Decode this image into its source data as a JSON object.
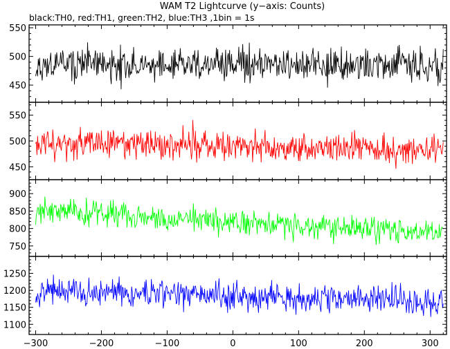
{
  "title": "WAM T2 Lightcurve (y−axis: Counts)",
  "subtitle": "black:TH0, red:TH1, green:TH2, blue:TH3 ,1bin = 1s",
  "chart_data": [
    {
      "type": "line",
      "series": [
        {
          "name": "TH0",
          "color": "#000000",
          "mean": 485,
          "noise": 22,
          "trend": 0,
          "seed": 11
        }
      ],
      "xlim": [
        -310,
        325
      ],
      "ylim": [
        420,
        555
      ],
      "yticks": [
        450,
        500,
        550
      ],
      "xticks": [
        -300,
        -200,
        -100,
        0,
        100,
        200,
        300
      ],
      "show_xtick_labels": false
    },
    {
      "type": "line",
      "series": [
        {
          "name": "TH1",
          "color": "#ff0000",
          "mean": 490,
          "noise": 22,
          "trend": -15,
          "seed": 23
        }
      ],
      "xlim": [
        -310,
        325
      ],
      "ylim": [
        425,
        575
      ],
      "yticks": [
        450,
        500,
        550
      ],
      "xticks": [
        -300,
        -200,
        -100,
        0,
        100,
        200,
        300
      ],
      "show_xtick_labels": false
    },
    {
      "type": "line",
      "series": [
        {
          "name": "TH2",
          "color": "#00ff00",
          "mean": 820,
          "noise": 28,
          "trend": -65,
          "seed": 37
        }
      ],
      "xlim": [
        -310,
        325
      ],
      "ylim": [
        720,
        940
      ],
      "yticks": [
        750,
        800,
        850,
        900
      ],
      "xticks": [
        -300,
        -200,
        -100,
        0,
        100,
        200,
        300
      ],
      "show_xtick_labels": false
    },
    {
      "type": "line",
      "series": [
        {
          "name": "TH3",
          "color": "#0000ff",
          "mean": 1185,
          "noise": 32,
          "trend": -30,
          "seed": 53
        }
      ],
      "xlim": [
        -310,
        325
      ],
      "ylim": [
        1070,
        1300
      ],
      "yticks": [
        1100,
        1150,
        1200,
        1250
      ],
      "xticks": [
        -300,
        -200,
        -100,
        0,
        100,
        200,
        300
      ],
      "show_xtick_labels": true,
      "xtick_labels": [
        "−300",
        "−200",
        "−100",
        "0",
        "100",
        "200",
        "300"
      ]
    }
  ]
}
